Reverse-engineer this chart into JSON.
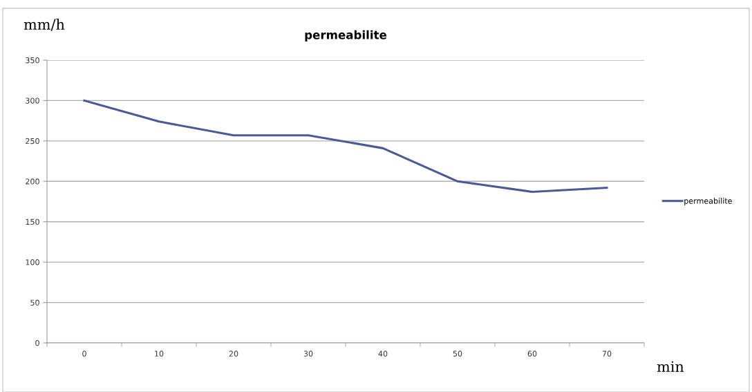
{
  "chart_data": {
    "type": "line",
    "title": "permeabilite",
    "ylabel": "mm/h",
    "xlabel": "min",
    "categories": [
      "0",
      "10",
      "20",
      "30",
      "40",
      "50",
      "60",
      "70"
    ],
    "series": [
      {
        "name": "permeabilite",
        "color": "#4a5a96",
        "values": [
          300,
          274,
          257,
          257,
          241,
          200,
          187,
          192
        ]
      }
    ],
    "ylim": [
      0,
      350
    ],
    "yticks": [
      0,
      50,
      100,
      150,
      200,
      250,
      300,
      350
    ],
    "grid": "y",
    "legend": "right",
    "marker": "none",
    "line_style": "solid"
  }
}
